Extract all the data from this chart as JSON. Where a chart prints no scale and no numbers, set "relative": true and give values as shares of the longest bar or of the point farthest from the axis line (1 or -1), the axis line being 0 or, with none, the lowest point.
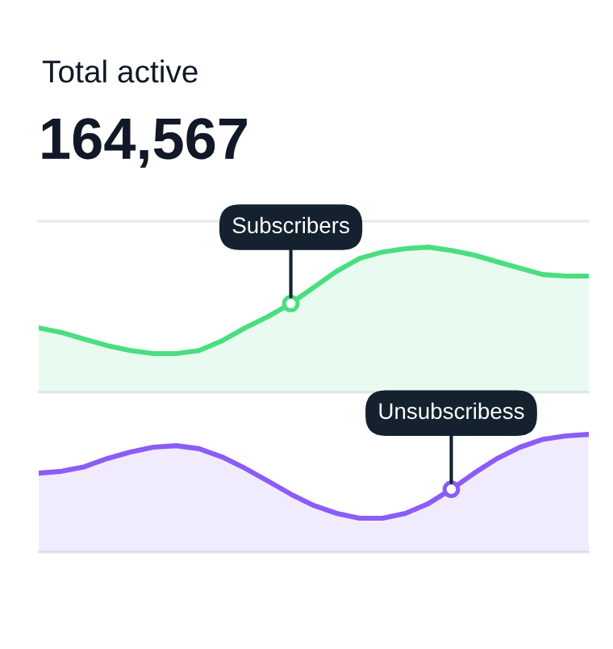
{
  "chart_data": {
    "type": "area",
    "relative": true,
    "title": "Total active",
    "subtitle": "164,567",
    "categories": [
      null,
      null,
      null,
      null,
      null,
      null,
      null,
      null,
      null,
      null,
      null,
      null,
      null,
      null,
      null,
      null,
      null,
      null,
      null,
      null,
      null,
      null,
      null,
      null,
      null
    ],
    "series": [
      {
        "color": "#8b5cf6",
        "values": [
          0.259,
          0.265,
          0.28,
          0.307,
          0.328,
          0.344,
          0.349,
          0.339,
          0.312,
          0.275,
          0.233,
          0.19,
          0.153,
          0.127,
          0.111,
          0.111,
          0.127,
          0.159,
          0.206,
          0.259,
          0.307,
          0.344,
          0.37,
          0.381,
          0.386
        ]
      },
      {
        "color": "#4ade80",
        "values": [
          0.735,
          0.72,
          0.698,
          0.677,
          0.661,
          0.651,
          0.651,
          0.661,
          0.693,
          0.735,
          0.772,
          0.815,
          0.868,
          0.921,
          0.963,
          0.984,
          0.995,
          1,
          0.989,
          0.974,
          0.952,
          0.931,
          0.91,
          0.905,
          0.905
        ]
      }
    ],
    "annotations": [
      {
        "text": "Subscribers",
        "y": 0.815
      },
      {
        "text": "Unsubscribess",
        "y": 0.206
      }
    ],
    "ref_lines": [
      {
        "axis": "y",
        "value": 0,
        "color": "#e5e7eb"
      },
      {
        "axis": "y",
        "value": 0.524,
        "color": "#e5e7eb"
      },
      {
        "axis": "y",
        "value": 1.085,
        "color": "#e5e7eb"
      }
    ]
  }
}
